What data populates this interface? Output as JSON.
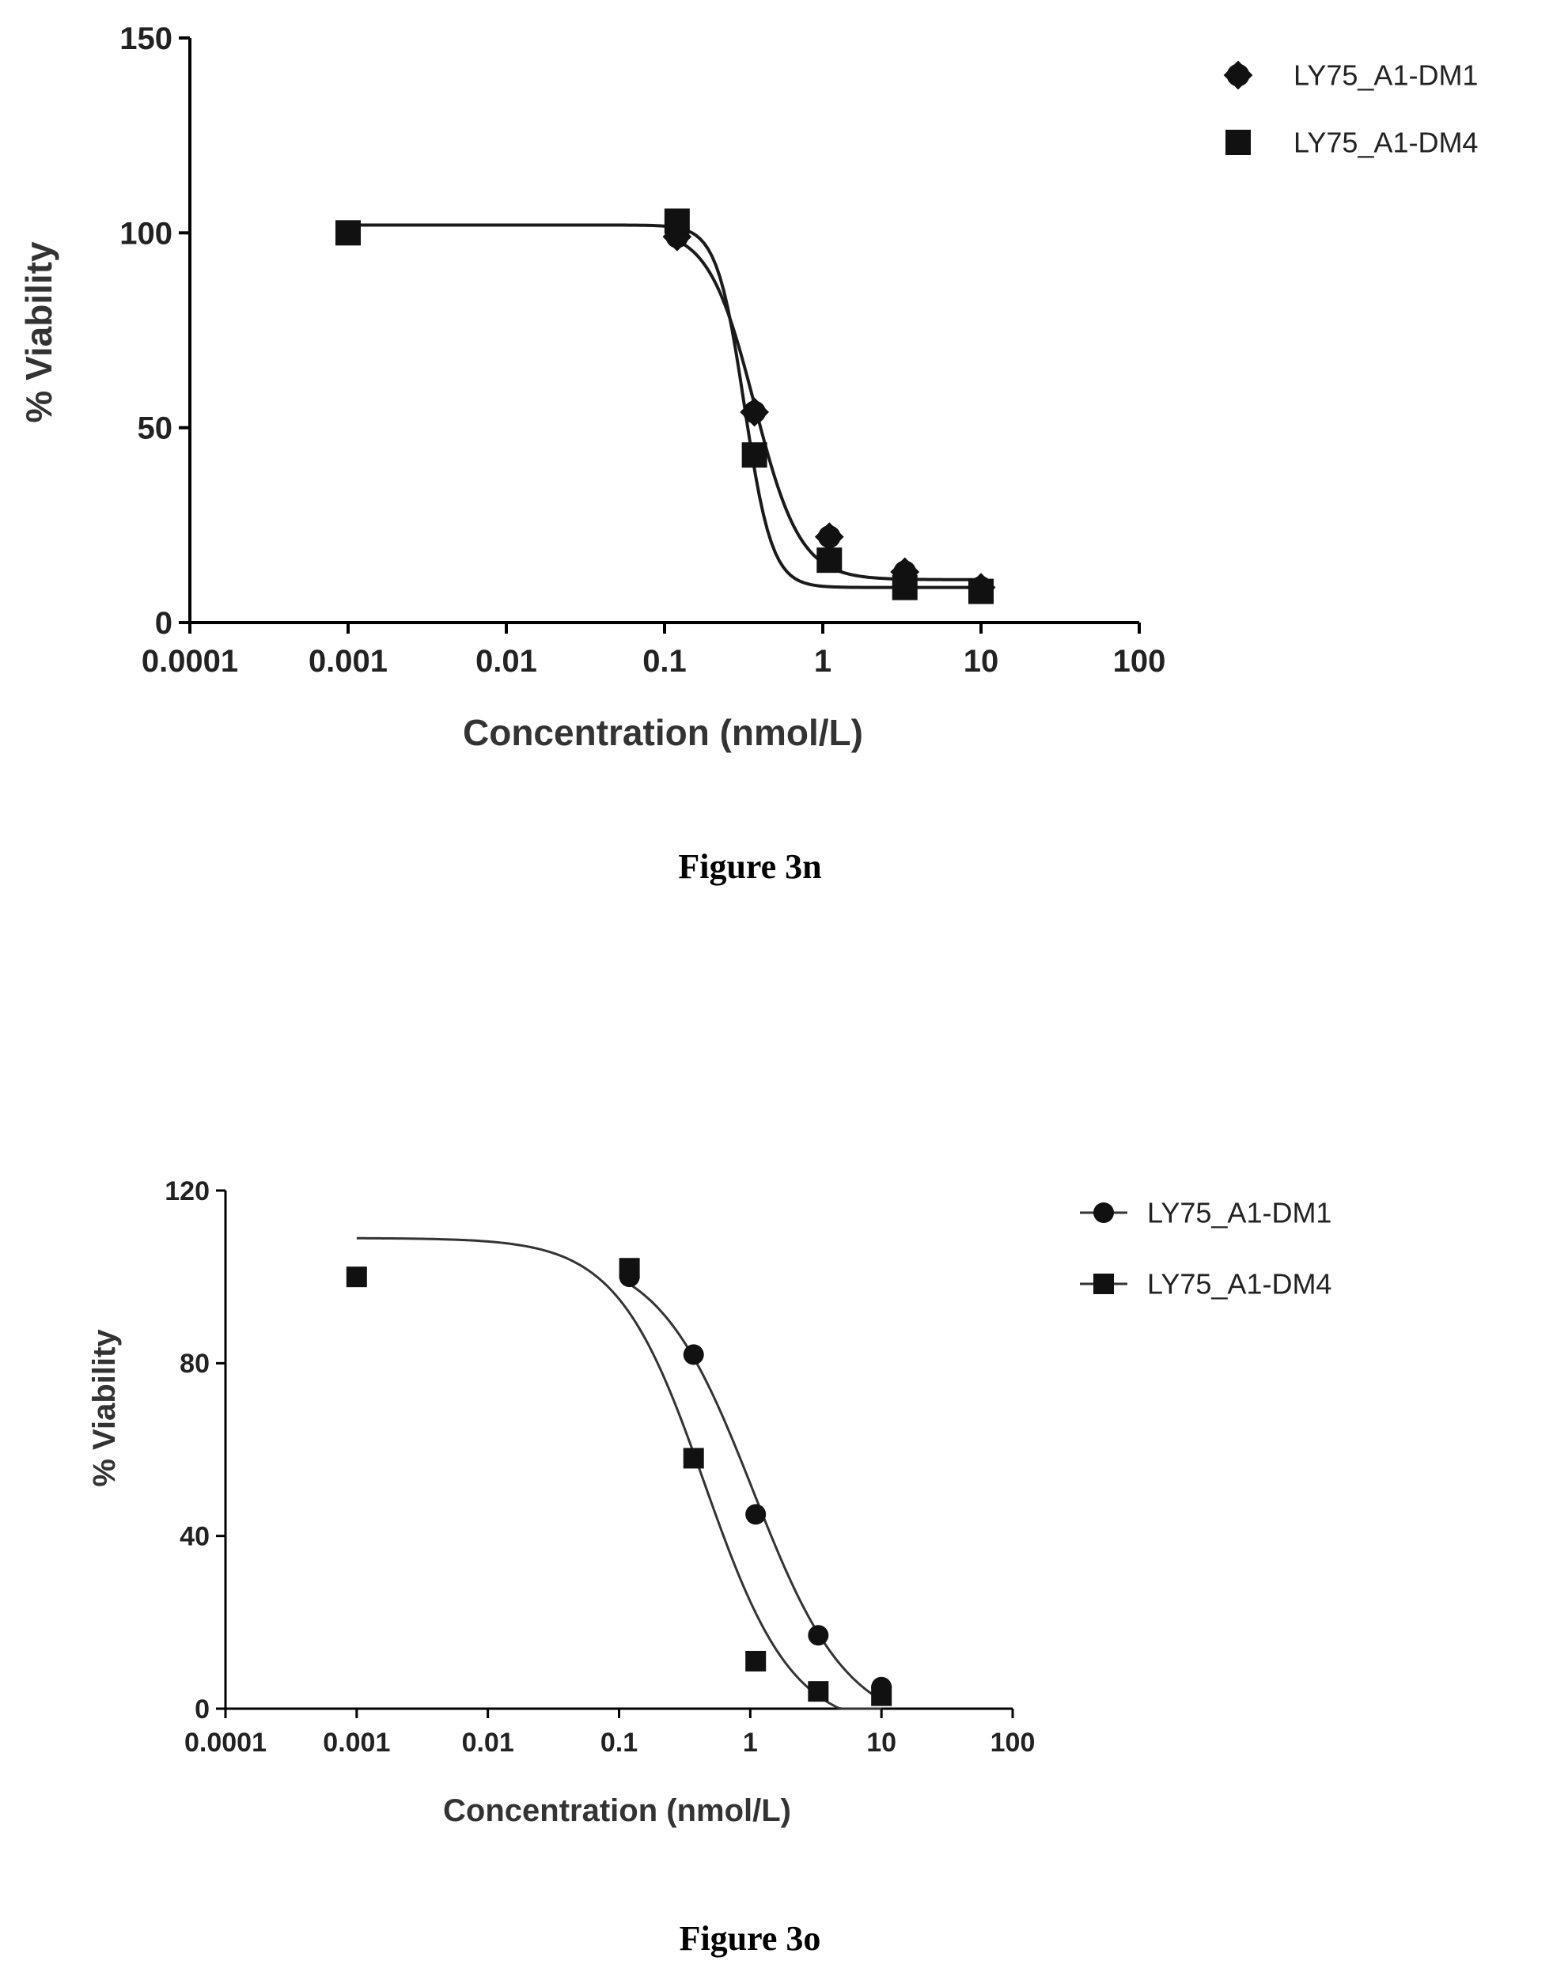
{
  "chart_data": [
    {
      "type": "scatter",
      "xscale": "log",
      "xlim": [
        0.0001,
        100
      ],
      "ylim": [
        0,
        150
      ],
      "xticks": [
        "0.0001",
        "0.001",
        "0.01",
        "0.1",
        "1",
        "10",
        "100"
      ],
      "yticks": [
        "0",
        "50",
        "100",
        "150"
      ],
      "xlabel": "Concentration (nmol/L)",
      "ylabel": "% Viability",
      "caption": "Figure 3n",
      "legend_position": "top-right",
      "series": [
        {
          "name": "LY75_A1-DM1",
          "marker": "diamond",
          "points": [
            [
              0.12,
              99
            ],
            [
              0.37,
              54
            ],
            [
              1.1,
              22
            ],
            [
              3.3,
              13
            ],
            [
              10,
              9
            ]
          ],
          "curve": {
            "top": 101,
            "bottom": 11,
            "ec50": 0.37,
            "hill": 3.0
          }
        },
        {
          "name": "LY75_A1-DM4",
          "marker": "square",
          "points": [
            [
              0.001,
              100
            ],
            [
              0.12,
              103
            ],
            [
              0.37,
              43
            ],
            [
              1.1,
              16
            ],
            [
              3.3,
              9
            ],
            [
              10,
              8
            ]
          ],
          "curve": {
            "top": 102,
            "bottom": 9,
            "ec50": 0.32,
            "hill": 5.0
          }
        }
      ]
    },
    {
      "type": "scatter",
      "xscale": "log",
      "xlim": [
        0.0001,
        100
      ],
      "ylim": [
        0,
        120
      ],
      "xticks": [
        "0.0001",
        "0.001",
        "0.01",
        "0.1",
        "1",
        "10",
        "100"
      ],
      "yticks": [
        "0",
        "40",
        "80",
        "120"
      ],
      "xlabel": "Concentration (nmol/L)",
      "ylabel": "% Viability",
      "caption": "Figure 3o",
      "legend_position": "top-right",
      "series": [
        {
          "name": "LY75_A1-DM1",
          "marker": "circle",
          "points": [
            [
              0.12,
              100
            ],
            [
              0.37,
              82
            ],
            [
              1.1,
              45
            ],
            [
              3.3,
              17
            ],
            [
              10,
              5
            ]
          ],
          "curve": {
            "top": 106,
            "bottom": -5,
            "ec50": 1.05,
            "hill": 1.2
          }
        },
        {
          "name": "LY75_A1-DM4",
          "marker": "square",
          "points": [
            [
              0.001,
              100
            ],
            [
              0.12,
              102
            ],
            [
              0.37,
              58
            ],
            [
              1.1,
              11
            ],
            [
              3.3,
              4
            ],
            [
              10,
              3
            ]
          ],
          "curve": {
            "top": 109,
            "bottom": -5,
            "ec50": 0.45,
            "hill": 1.3
          }
        }
      ]
    }
  ]
}
